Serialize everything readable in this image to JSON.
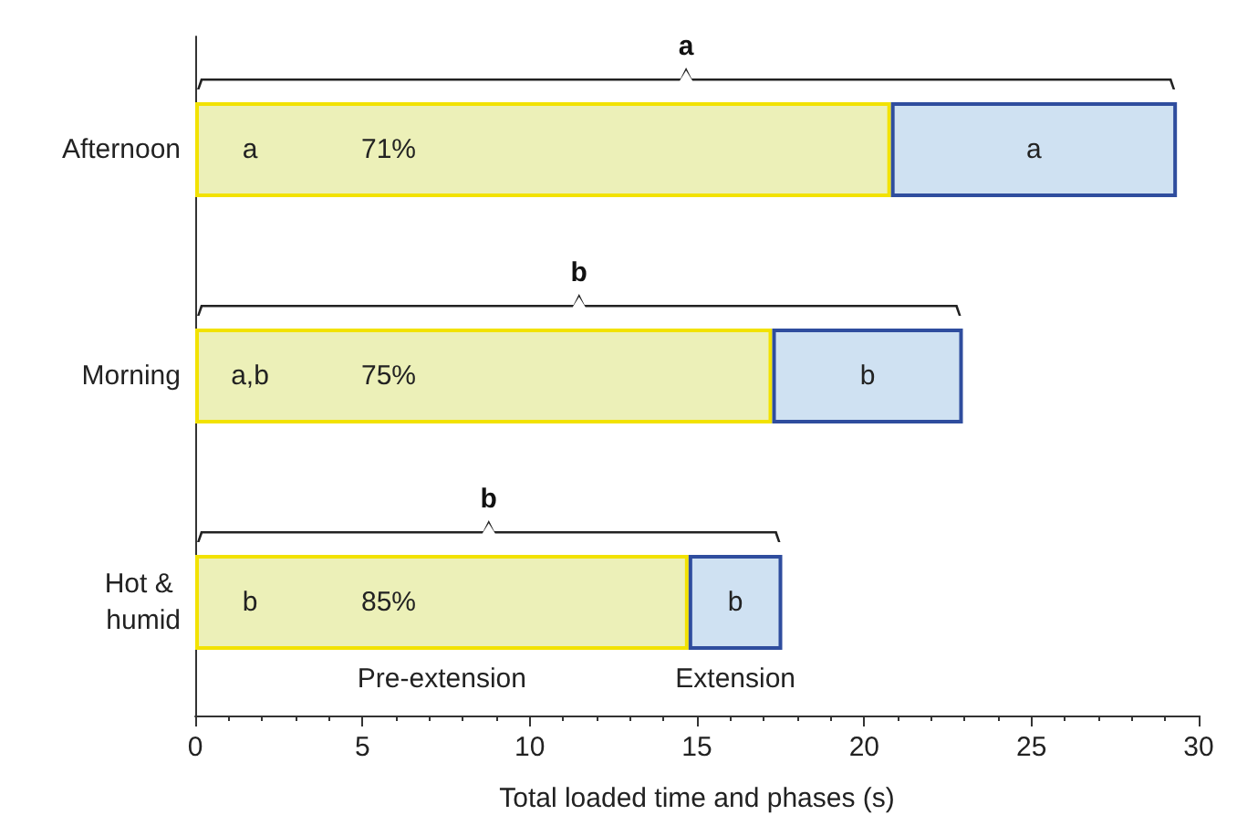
{
  "chart_data": {
    "type": "bar",
    "orientation": "horizontal",
    "stacked": true,
    "xlabel": "Total loaded time and phases (s)",
    "categories": [
      "Afternoon",
      "Morning",
      "Hot & humid"
    ],
    "series": [
      {
        "name": "Pre-extension",
        "color": "#ecf0b8",
        "values": [
          20.8,
          17.25,
          14.75
        ]
      },
      {
        "name": "Extension",
        "color": "#cfe1f2",
        "values": [
          8.55,
          5.7,
          2.8
        ]
      }
    ],
    "xlim": [
      0,
      30
    ],
    "xticks": [
      0,
      5,
      10,
      15,
      20,
      25,
      30
    ],
    "grid": false,
    "annotations": [
      "a",
      "b",
      "b",
      "a",
      "a,b",
      "b",
      "71%",
      "75%",
      "85%",
      "a",
      "b",
      "b"
    ]
  }
}
